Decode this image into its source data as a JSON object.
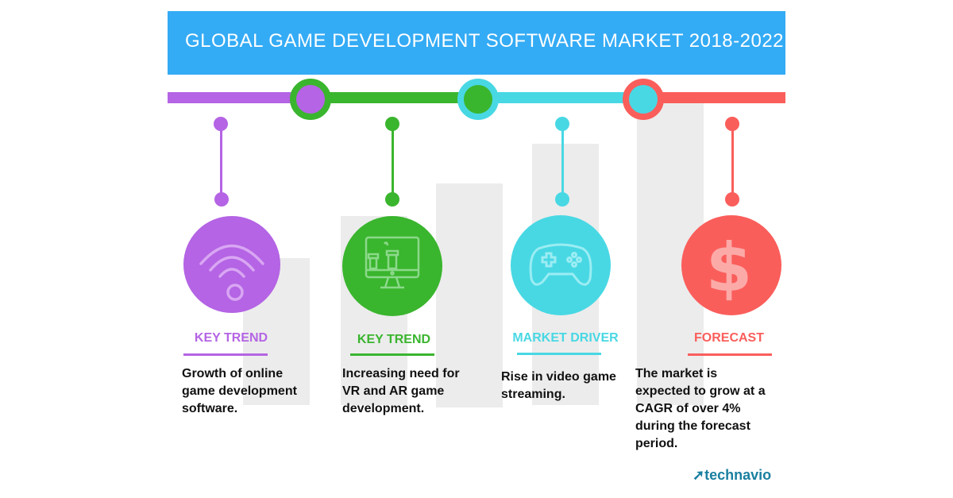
{
  "title": "GLOBAL GAME DEVELOPMENT SOFTWARE MARKET 2018-2022",
  "colors": {
    "banner": "#34abf5",
    "purple": "#b464e4",
    "green": "#3ab52e",
    "cyan": "#48d8e4",
    "red": "#fa5e5b",
    "bars": "#ececec"
  },
  "items": [
    {
      "label": "KEY TREND",
      "text": "Growth of online game development software.",
      "icon": "wifi-icon"
    },
    {
      "label": "KEY TREND",
      "text": "Increasing need for VR and AR game development.",
      "icon": "monitor-game-icon"
    },
    {
      "label": "MARKET DRIVER",
      "text": "Rise in video game streaming.",
      "icon": "gamepad-icon"
    },
    {
      "label": "FORECAST",
      "text": "The market is expected to grow at a CAGR of over 4% during the forecast period.",
      "icon": "dollar-icon"
    }
  ],
  "logo": "technavio"
}
